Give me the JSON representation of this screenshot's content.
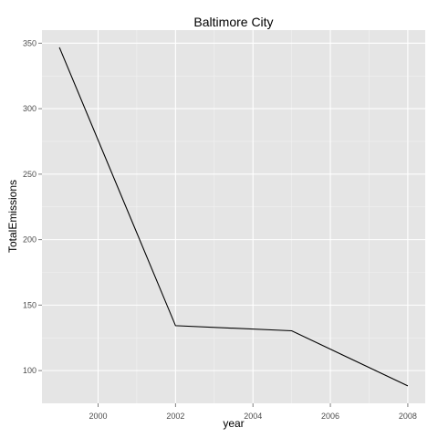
{
  "chart_data": {
    "type": "line",
    "title": "Baltimore City",
    "xlabel": "year",
    "ylabel": "TotalEmissions",
    "x": [
      1999,
      2002,
      2005,
      2008
    ],
    "series": [
      {
        "values": [
          346.8,
          134.3,
          130.4,
          88.3
        ]
      }
    ],
    "xlim": [
      1998.55,
      2008.45
    ],
    "ylim": [
      75,
      360
    ],
    "xticks": [
      "2000",
      "2002",
      "2004",
      "2006",
      "2008"
    ],
    "yticks": [
      "100",
      "150",
      "200",
      "250",
      "300",
      "350"
    ],
    "grid": true,
    "legend": "none"
  },
  "colors": {
    "panel_background": "#e5e5e5",
    "grid_major": "#ffffff",
    "line": "#000000",
    "tick_label": "#4d4d4d"
  }
}
